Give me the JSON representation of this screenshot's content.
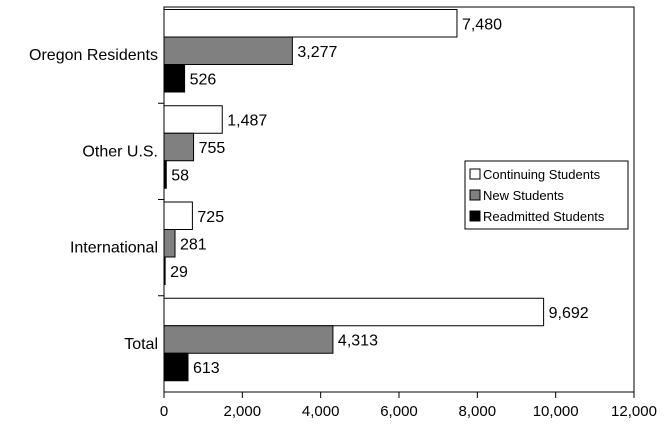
{
  "chart_data": {
    "type": "bar",
    "orientation": "horizontal",
    "categories": [
      "Oregon Residents",
      "Other U.S.",
      "International",
      "Total"
    ],
    "series": [
      {
        "name": "Continuing Students",
        "values": [
          7480,
          1487,
          725,
          9692
        ],
        "color": "#ffffff"
      },
      {
        "name": "New Students",
        "values": [
          3277,
          755,
          281,
          4313
        ],
        "color": "#808080"
      },
      {
        "name": "Readmitted Students",
        "values": [
          526,
          58,
          29,
          613
        ],
        "color": "#000000"
      }
    ],
    "value_labels": [
      [
        "7,480",
        "1,487",
        "725",
        "9,692"
      ],
      [
        "3,277",
        "755",
        "281",
        "4,313"
      ],
      [
        "526",
        "58",
        "29",
        "613"
      ]
    ],
    "xlim": [
      0,
      12000
    ],
    "xticks": [
      0,
      2000,
      4000,
      6000,
      8000,
      10000,
      12000
    ],
    "xtick_labels": [
      "0",
      "2,000",
      "4,000",
      "6,000",
      "8,000",
      "10,000",
      "12,000"
    ],
    "title": "",
    "xlabel": "",
    "ylabel": "",
    "grid": false,
    "legend_position": "right"
  }
}
